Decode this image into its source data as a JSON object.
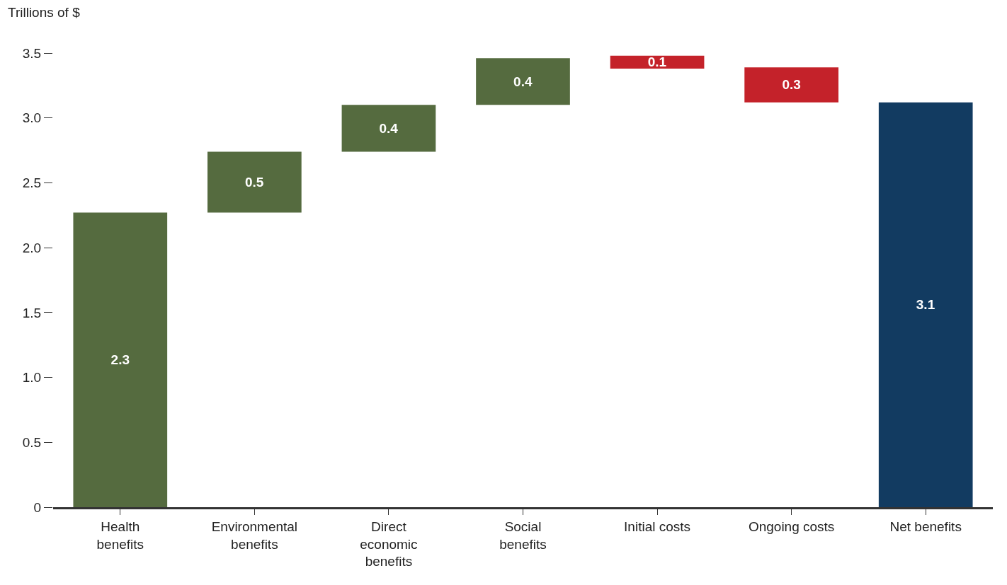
{
  "chart_data": {
    "type": "bar",
    "ylabel": "Trillions of $",
    "categories": [
      "Health benefits",
      "Environmental benefits",
      "Direct economic benefits",
      "Social benefits",
      "Initial costs",
      "Ongoing costs",
      "Net benefits"
    ],
    "values": [
      2.27,
      0.47,
      0.36,
      0.36,
      -0.1,
      -0.27,
      3.12
    ],
    "base": [
      0,
      2.27,
      2.74,
      3.1,
      3.48,
      3.39,
      0
    ],
    "colors": [
      "#556b3f",
      "#556b3f",
      "#556b3f",
      "#556b3f",
      "#c4222a",
      "#c4222a",
      "#123b61"
    ],
    "value_labels": [
      "2.3",
      "0.5",
      "0.4",
      "0.4",
      "0.1",
      "0.3",
      "3.1"
    ],
    "ylim": [
      0,
      3.5
    ],
    "yticks": [
      0,
      0.5,
      {
        "value": 1,
        "label": "1.0"
      },
      1.5,
      {
        "value": 2,
        "label": "2.0"
      },
      2.5,
      {
        "value": 3,
        "label": "3.0"
      },
      3.5
    ],
    "legend": false
  }
}
